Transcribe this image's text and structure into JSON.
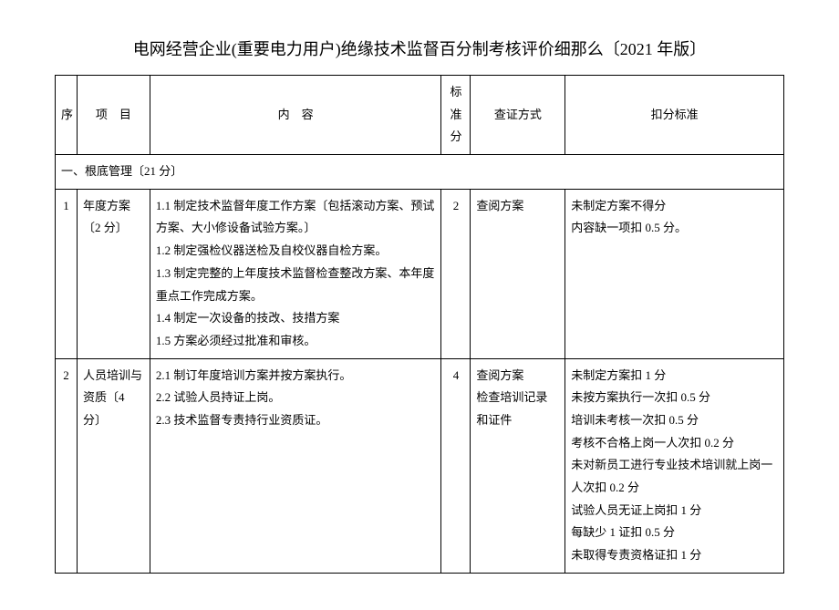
{
  "title": "电网经营企业(重要电力用户)绝缘技术监督百分制考核评价细那么〔2021 年版〕",
  "headers": {
    "seq": "序",
    "item": "项　目",
    "content": "内　容",
    "score": "标准分",
    "verify": "查证方式",
    "deduct": "扣分标准"
  },
  "section1": {
    "label": "一、根底管理〔21 分〕"
  },
  "rows": [
    {
      "seq": "1",
      "item": "年度方案〔2 分〕",
      "content": "1.1 制定技术监督年度工作方案〔包括滚动方案、预试方案、大小修设备试验方案。〕\n1.2 制定强检仪器送检及自校仪器自检方案。\n1.3 制定完整的上年度技术监督检查整改方案、本年度重点工作完成方案。\n1.4 制定一次设备的技改、技措方案\n1.5 方案必须经过批准和审核。",
      "score": "2",
      "verify": "查阅方案",
      "deduct": "未制定方案不得分\n内容缺一项扣 0.5 分。"
    },
    {
      "seq": "2",
      "item": "人员培训与资质〔4 分〕",
      "content": "2.1 制订年度培训方案并按方案执行。\n2.2 试验人员持证上岗。\n2.3 技术监督专责持行业资质证。",
      "score": "4",
      "verify": "查阅方案\n检查培训记录和证件",
      "deduct": "未制定方案扣 1 分\n未按方案执行一次扣 0.5 分\n培训未考核一次扣 0.5 分\n考核不合格上岗一人次扣 0.2 分\n未对新员工进行专业技术培训就上岗一人次扣 0.2 分\n试验人员无证上岗扣 1 分\n每缺少 1 证扣 0.5 分\n未取得专责资格证扣 1 分"
    }
  ]
}
